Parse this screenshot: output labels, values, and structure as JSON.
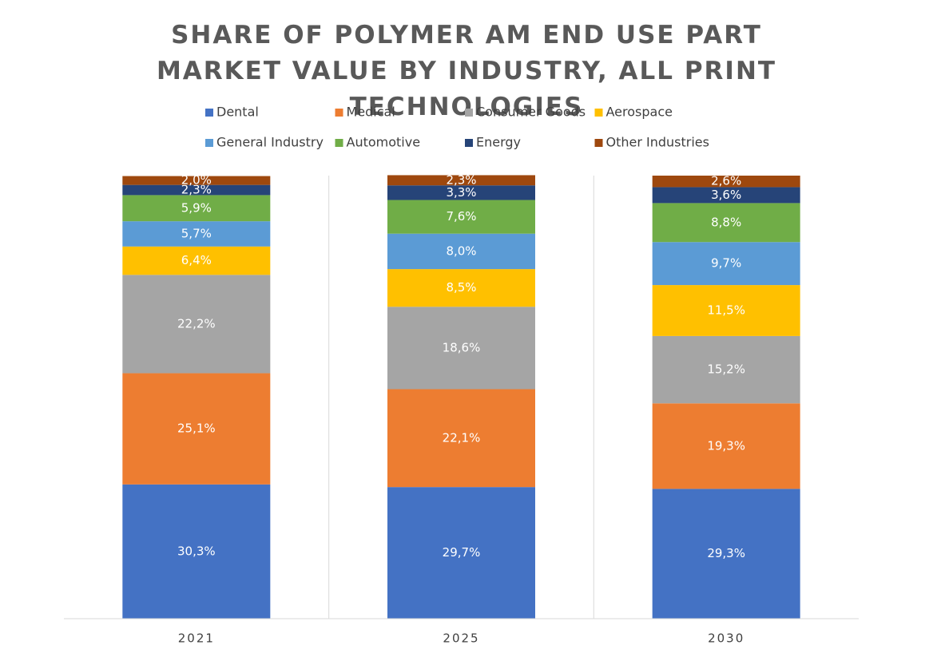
{
  "chart_data": {
    "type": "stacked-bar",
    "title": "SHARE OF POLYMER AM END USE PART MARKET VALUE BY INDUSTRY, ALL PRINT TECHNOLOGIES",
    "categories": [
      "2021",
      "2025",
      "2030"
    ],
    "ylim": [
      0,
      100
    ],
    "series": [
      {
        "name": "Dental",
        "color": "#4472c4",
        "values": [
          30.3,
          29.7,
          29.3
        ],
        "value_labels": [
          "30,3%",
          "29,7%",
          "29,3%"
        ]
      },
      {
        "name": "Medical",
        "color": "#ed7d31",
        "values": [
          25.1,
          22.1,
          19.3
        ],
        "value_labels": [
          "25,1%",
          "22,1%",
          "19,3%"
        ]
      },
      {
        "name": "Consumer Goods",
        "color": "#a5a5a5",
        "values": [
          22.2,
          18.6,
          15.2
        ],
        "value_labels": [
          "22,2%",
          "18,6%",
          "15,2%"
        ]
      },
      {
        "name": "Aerospace",
        "color": "#ffc000",
        "values": [
          6.4,
          8.5,
          11.5
        ],
        "value_labels": [
          "6,4%",
          "8,5%",
          "11,5%"
        ]
      },
      {
        "name": "General Industry",
        "color": "#5b9bd5",
        "values": [
          5.7,
          8.0,
          9.7
        ],
        "value_labels": [
          "5,7%",
          "8,0%",
          "9,7%"
        ]
      },
      {
        "name": "Automotive",
        "color": "#70ad47",
        "values": [
          5.9,
          7.6,
          8.8
        ],
        "value_labels": [
          "5,9%",
          "7,6%",
          "8,8%"
        ]
      },
      {
        "name": "Energy",
        "color": "#264478",
        "values": [
          2.3,
          3.3,
          3.6
        ],
        "value_labels": [
          "2,3%",
          "3,3%",
          "3,6%"
        ]
      },
      {
        "name": "Other Industries",
        "color": "#9e480e",
        "values": [
          2.0,
          2.3,
          2.6
        ],
        "value_labels": [
          "2,0%",
          "2,3%",
          "2,6%"
        ]
      }
    ]
  }
}
